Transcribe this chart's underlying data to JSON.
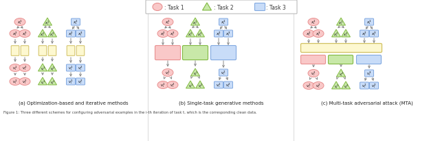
{
  "fig_width": 6.4,
  "fig_height": 2.07,
  "dpi": 100,
  "bg_color": "#ffffff",
  "pink_fill": "#f9c8c8",
  "pink_edge": "#e89090",
  "green_fill": "#c8e8a8",
  "green_edge": "#80b840",
  "blue_fill": "#c8dcf8",
  "blue_edge": "#80a8e0",
  "yellow_fill": "#fdf8d0",
  "yellow_edge": "#d0c060",
  "arrow_color": "#888888",
  "subtitle_a": "(a) Optimization-based and iterative methods",
  "subtitle_b": "(b) Single-task generative methods",
  "subtitle_c": "(c) Multi-task adversarial attack (MTA)",
  "caption": "Figure 1: Three different schemes for configuring adversarial examples in the i-th iteration of task t, which is the corresponding clean data.",
  "divider_color": "#cccccc",
  "legend_border": "#bbbbbb"
}
